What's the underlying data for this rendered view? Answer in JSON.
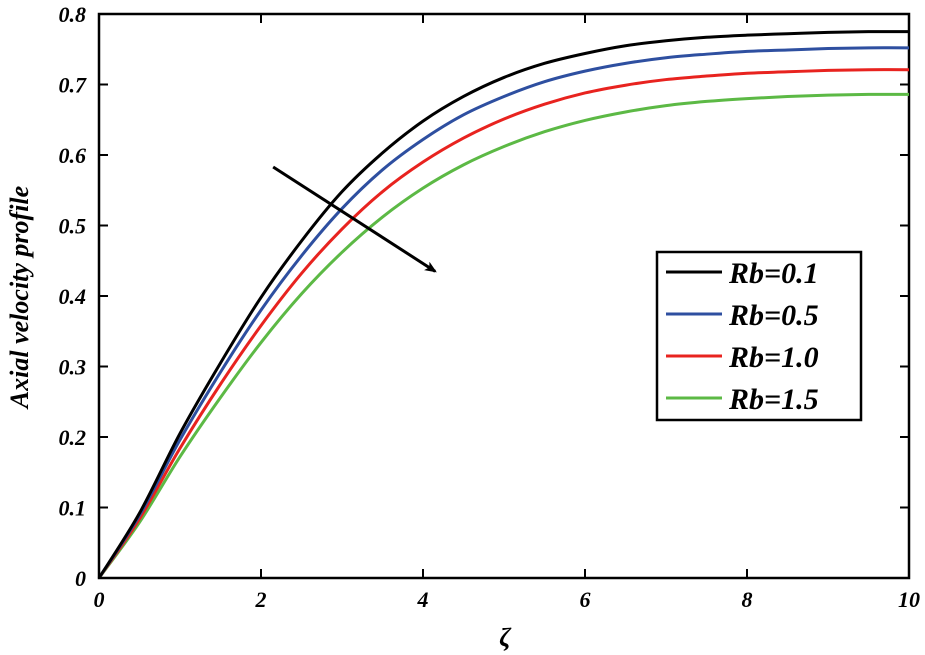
{
  "chart_data": {
    "type": "line",
    "title": "",
    "xlabel": "ζ",
    "ylabel": "Axial velocity profile",
    "xlim": [
      0,
      10
    ],
    "ylim": [
      0,
      0.8
    ],
    "xticks": [
      0,
      2,
      4,
      6,
      8,
      10
    ],
    "xtick_labels": [
      "0",
      "2",
      "4",
      "6",
      "8",
      "10"
    ],
    "yticks": [
      0,
      0.1,
      0.2,
      0.3,
      0.4,
      0.5,
      0.6,
      0.7,
      0.8
    ],
    "ytick_labels": [
      "0",
      "0.1",
      "0.2",
      "0.3",
      "0.4",
      "0.5",
      "0.6",
      "0.7",
      "0.8"
    ],
    "grid": false,
    "legend_position": "right",
    "x": [
      0,
      0.5,
      1,
      1.5,
      2,
      2.5,
      3,
      3.5,
      4,
      4.5,
      5,
      5.5,
      6,
      6.5,
      7,
      7.5,
      8,
      8.5,
      9,
      9.5,
      10
    ],
    "series": [
      {
        "name": "Rb=0.1",
        "color": "#000000",
        "values": [
          0,
          0.092,
          0.205,
          0.305,
          0.398,
          0.478,
          0.548,
          0.603,
          0.648,
          0.683,
          0.71,
          0.73,
          0.744,
          0.755,
          0.762,
          0.767,
          0.77,
          0.772,
          0.774,
          0.775,
          0.775
        ]
      },
      {
        "name": "Rb=0.5",
        "color": "#2e4fa0",
        "values": [
          0,
          0.089,
          0.196,
          0.292,
          0.38,
          0.457,
          0.524,
          0.579,
          0.622,
          0.657,
          0.683,
          0.704,
          0.719,
          0.73,
          0.738,
          0.743,
          0.747,
          0.749,
          0.751,
          0.752,
          0.752
        ]
      },
      {
        "name": "Rb=1.0",
        "color": "#e8231f",
        "values": [
          0,
          0.084,
          0.184,
          0.275,
          0.358,
          0.432,
          0.495,
          0.548,
          0.59,
          0.624,
          0.651,
          0.672,
          0.688,
          0.699,
          0.707,
          0.712,
          0.716,
          0.718,
          0.72,
          0.721,
          0.721
        ]
      },
      {
        "name": "Rb=1.5",
        "color": "#5cb945",
        "values": [
          0,
          0.079,
          0.172,
          0.256,
          0.334,
          0.403,
          0.462,
          0.512,
          0.553,
          0.586,
          0.612,
          0.633,
          0.649,
          0.661,
          0.67,
          0.676,
          0.68,
          0.683,
          0.685,
          0.686,
          0.686
        ]
      }
    ],
    "annotations": [
      {
        "type": "arrow",
        "from": [
          2.15,
          0.583
        ],
        "to": [
          4.15,
          0.435
        ]
      }
    ]
  }
}
